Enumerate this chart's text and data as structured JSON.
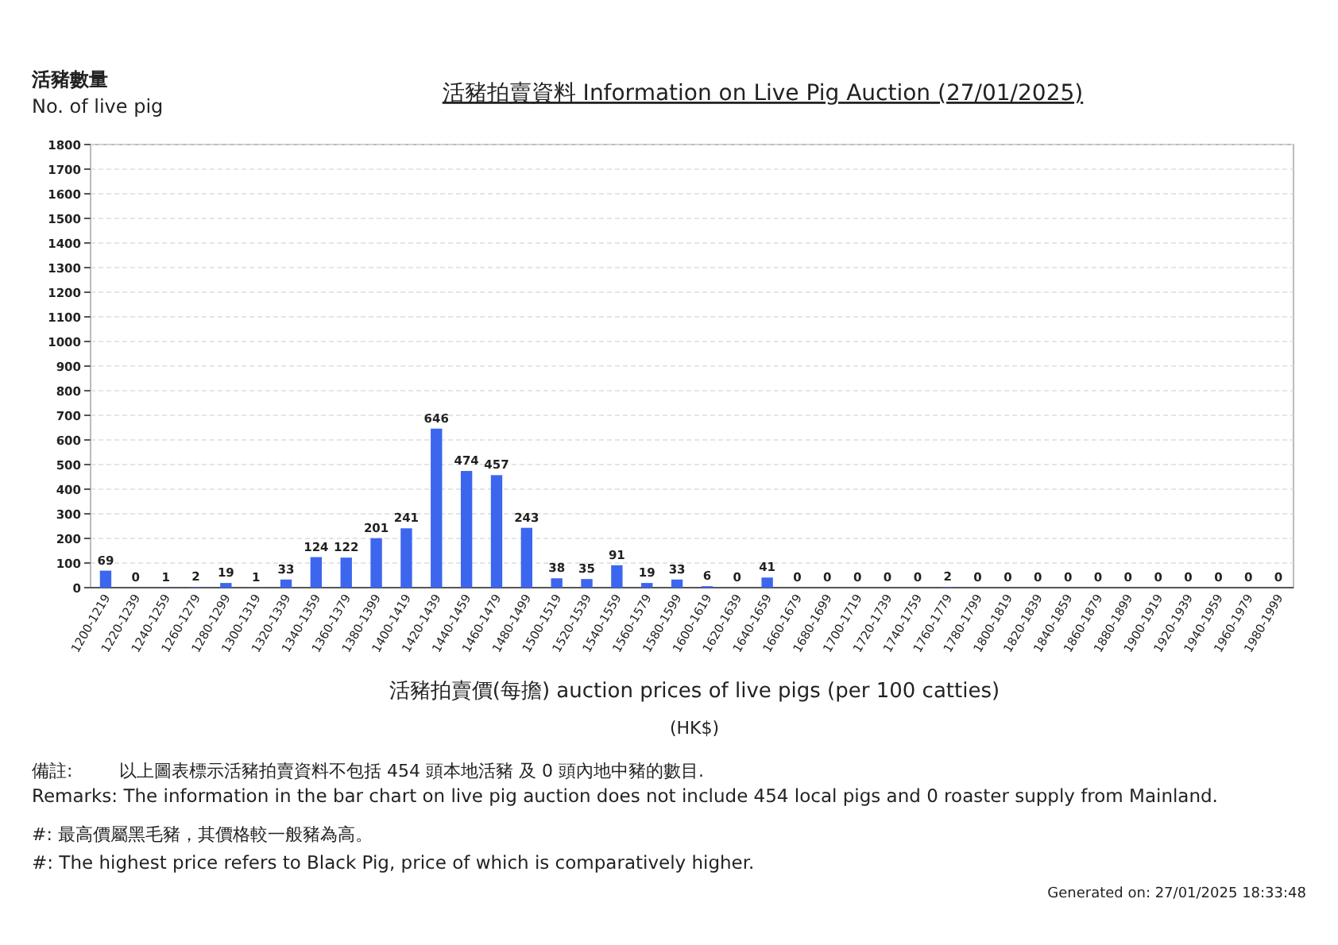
{
  "chart_data": {
    "type": "bar",
    "title": "活豬拍賣資料 Information on Live Pig Auction (27/01/2025)",
    "ylabel": "活豬數量\nNo. of live pig",
    "xlabel": "活豬拍賣價(每擔) auction prices of live pigs (per 100 catties)",
    "annotations": [
      "(HK$)",
      "備註:",
      "以上圖表標示活豬拍賣資料不包括 454 頭本地活豬 及 0 頭內地中豬的數目.",
      "Remarks: The information in the bar chart on live pig auction does not include 454 local pigs and 0 roaster supply from Mainland.",
      "#: 最高價屬黑毛豬，其價格較一般豬為高。",
      "#: The highest price refers to Black Pig, price of which is comparatively higher.",
      "Generated on: 27/01/2025 18:33:48"
    ],
    "categories": [
      "1200-1219",
      "1220-1239",
      "1240-1259",
      "1260-1279",
      "1280-1299",
      "1300-1319",
      "1320-1339",
      "1340-1359",
      "1360-1379",
      "1380-1399",
      "1400-1419",
      "1420-1439",
      "1440-1459",
      "1460-1479",
      "1480-1499",
      "1500-1519",
      "1520-1539",
      "1540-1559",
      "1560-1579",
      "1580-1599",
      "1600-1619",
      "1620-1639",
      "1640-1659",
      "1660-1679",
      "1680-1699",
      "1700-1719",
      "1720-1739",
      "1740-1759",
      "1760-1779",
      "1780-1799",
      "1800-1819",
      "1820-1839",
      "1840-1859",
      "1860-1879",
      "1880-1899",
      "1900-1919",
      "1920-1939",
      "1940-1959",
      "1960-1979",
      "1980-1999"
    ],
    "values": [
      69,
      0,
      1,
      2,
      19,
      1,
      33,
      124,
      122,
      201,
      241,
      646,
      474,
      457,
      243,
      38,
      35,
      91,
      19,
      33,
      6,
      0,
      41,
      0,
      0,
      0,
      0,
      0,
      2,
      0,
      0,
      0,
      0,
      0,
      0,
      0,
      0,
      0,
      0,
      0
    ],
    "color": "#3d66ee",
    "ylim": [
      0,
      1800
    ],
    "yticks": [
      0,
      100,
      200,
      300,
      400,
      500,
      600,
      700,
      800,
      900,
      1000,
      1100,
      1200,
      1300,
      1400,
      1500,
      1600,
      1700,
      1800
    ],
    "grid": "y",
    "data_labels": true
  }
}
